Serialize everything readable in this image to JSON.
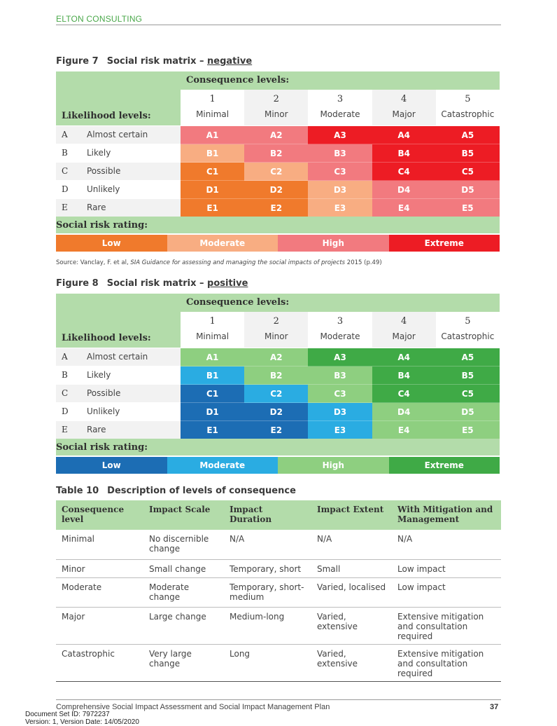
{
  "header": {
    "brand": "ELTON CONSULTING"
  },
  "figure7": {
    "number": "Figure 7",
    "title_prefix": "Social risk matrix – ",
    "title_emph": "negative",
    "consequence_heading": "Consequence levels:",
    "likelihood_heading": "Likelihood levels:",
    "rating_heading": "Social risk rating:",
    "columns": [
      {
        "num": "1",
        "label": "Minimal"
      },
      {
        "num": "2",
        "label": "Minor"
      },
      {
        "num": "3",
        "label": "Moderate"
      },
      {
        "num": "4",
        "label": "Major"
      },
      {
        "num": "5",
        "label": "Catastrophic"
      }
    ],
    "rows": [
      {
        "letter": "A",
        "name": "Almost certain",
        "cells": [
          "A1",
          "A2",
          "A3",
          "A4",
          "A5"
        ],
        "ratings": [
          "high",
          "high",
          "extreme",
          "extreme",
          "extreme"
        ]
      },
      {
        "letter": "B",
        "name": "Likely",
        "cells": [
          "B1",
          "B2",
          "B3",
          "B4",
          "B5"
        ],
        "ratings": [
          "moderate",
          "high",
          "high",
          "extreme",
          "extreme"
        ]
      },
      {
        "letter": "C",
        "name": "Possible",
        "cells": [
          "C1",
          "C2",
          "C3",
          "C4",
          "C5"
        ],
        "ratings": [
          "low",
          "moderate",
          "high",
          "extreme",
          "extreme"
        ]
      },
      {
        "letter": "D",
        "name": "Unlikely",
        "cells": [
          "D1",
          "D2",
          "D3",
          "D4",
          "D5"
        ],
        "ratings": [
          "low",
          "low",
          "moderate",
          "high",
          "high"
        ]
      },
      {
        "letter": "E",
        "name": "Rare",
        "cells": [
          "E1",
          "E2",
          "E3",
          "E4",
          "E5"
        ],
        "ratings": [
          "low",
          "low",
          "moderate",
          "high",
          "high"
        ]
      }
    ],
    "legend": [
      {
        "key": "low",
        "label": "Low"
      },
      {
        "key": "moderate",
        "label": "Moderate"
      },
      {
        "key": "high",
        "label": "High"
      },
      {
        "key": "extreme",
        "label": "Extreme"
      }
    ],
    "colors": {
      "low": "#f07a2c",
      "moderate": "#f8ad82",
      "high": "#f27a7f",
      "extreme": "#ed1c24"
    }
  },
  "source": {
    "prefix": "Source: Vanclay, F. et al, ",
    "italic": "SIA Guidance for assessing and managing the social impacts of projects",
    "suffix": " 2015 (p.49)"
  },
  "figure8": {
    "number": "Figure 8",
    "title_prefix": "Social risk matrix – ",
    "title_emph": "positive",
    "consequence_heading": "Consequence levels:",
    "likelihood_heading": "Likelihood levels:",
    "rating_heading": "Social risk rating:",
    "columns": [
      {
        "num": "1",
        "label": "Minimal"
      },
      {
        "num": "2",
        "label": "Minor"
      },
      {
        "num": "3",
        "label": "Moderate"
      },
      {
        "num": "4",
        "label": "Major"
      },
      {
        "num": "5",
        "label": "Catastrophic"
      }
    ],
    "rows": [
      {
        "letter": "A",
        "name": "Almost certain",
        "cells": [
          "A1",
          "A2",
          "A3",
          "A4",
          "A5"
        ],
        "ratings": [
          "high",
          "high",
          "extreme",
          "extreme",
          "extreme"
        ]
      },
      {
        "letter": "B",
        "name": "Likely",
        "cells": [
          "B1",
          "B2",
          "B3",
          "B4",
          "B5"
        ],
        "ratings": [
          "moderate",
          "high",
          "high",
          "extreme",
          "extreme"
        ]
      },
      {
        "letter": "C",
        "name": "Possible",
        "cells": [
          "C1",
          "C2",
          "C3",
          "C4",
          "C5"
        ],
        "ratings": [
          "low",
          "moderate",
          "high",
          "extreme",
          "extreme"
        ]
      },
      {
        "letter": "D",
        "name": "Unlikely",
        "cells": [
          "D1",
          "D2",
          "D3",
          "D4",
          "D5"
        ],
        "ratings": [
          "low",
          "low",
          "moderate",
          "high",
          "high"
        ]
      },
      {
        "letter": "E",
        "name": "Rare",
        "cells": [
          "E1",
          "E2",
          "E3",
          "E4",
          "E5"
        ],
        "ratings": [
          "low",
          "low",
          "moderate",
          "high",
          "high"
        ]
      }
    ],
    "legend": [
      {
        "key": "low",
        "label": "Low"
      },
      {
        "key": "moderate",
        "label": "Moderate"
      },
      {
        "key": "high",
        "label": "High"
      },
      {
        "key": "extreme",
        "label": "Extreme"
      }
    ],
    "colors": {
      "low": "#1c6db4",
      "moderate": "#2aace2",
      "high": "#8ecf80",
      "extreme": "#3faa46"
    }
  },
  "table10": {
    "number": "Table 10",
    "title": "Description of levels of consequence",
    "headers": [
      "Consequence level",
      "Impact Scale",
      "Impact Duration",
      "Impact Extent",
      "With Mitigation and Management"
    ],
    "rows": [
      [
        "Minimal",
        "No discernible change",
        "N/A",
        "N/A",
        "N/A"
      ],
      [
        "Minor",
        "Small change",
        "Temporary, short",
        "Small",
        "Low impact"
      ],
      [
        "Moderate",
        "Moderate change",
        "Temporary, short-medium",
        "Varied, localised",
        "Low impact"
      ],
      [
        "Major",
        "Large change",
        "Medium-long",
        "Varied, extensive",
        "Extensive mitigation and consultation required"
      ],
      [
        "Catastrophic",
        "Very large change",
        "Long",
        "Varied, extensive",
        "Extensive mitigation and consultation required"
      ]
    ]
  },
  "footer": {
    "title": "Comprehensive Social Impact Assessment and Social Impact Management Plan",
    "page": "37",
    "doc_set": "Document Set ID: 7972237",
    "version": "Version: 1, Version Date: 14/05/2020"
  }
}
